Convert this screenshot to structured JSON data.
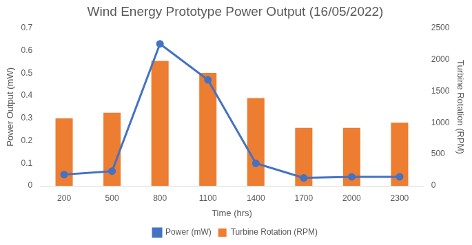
{
  "chart_data": {
    "type": "bar",
    "title": "Wind Energy Prototype Power Output (16/05/2022)",
    "x_label": "Time (hrs)",
    "y_label": "Power Output (mW)",
    "y2_label": "Turbine Rotation (RPM)",
    "categories": [
      "200",
      "500",
      "800",
      "1100",
      "1400",
      "1700",
      "2000",
      "2300"
    ],
    "series": [
      {
        "name": "Turbine Rotation (RPM)",
        "type": "bar",
        "color": "#ed7d31",
        "axis": "y2",
        "values": [
          1070,
          1160,
          1980,
          1790,
          1390,
          920,
          920,
          1000
        ]
      },
      {
        "name": "Power (mW)",
        "type": "line",
        "color": "#4472c4",
        "marker": "circle",
        "values": [
          0.05,
          0.065,
          0.63,
          0.47,
          0.1,
          0.035,
          0.04,
          0.04
        ]
      }
    ],
    "ylim": [
      0,
      0.7
    ],
    "yticks": [
      0,
      0.1,
      0.2,
      0.3,
      0.4,
      0.5,
      0.6,
      0.7
    ],
    "y2lim": [
      0,
      2500
    ],
    "y2ticks": [
      0,
      500,
      1000,
      1500,
      2000,
      2500
    ],
    "grid": false,
    "legend": "bottom"
  }
}
